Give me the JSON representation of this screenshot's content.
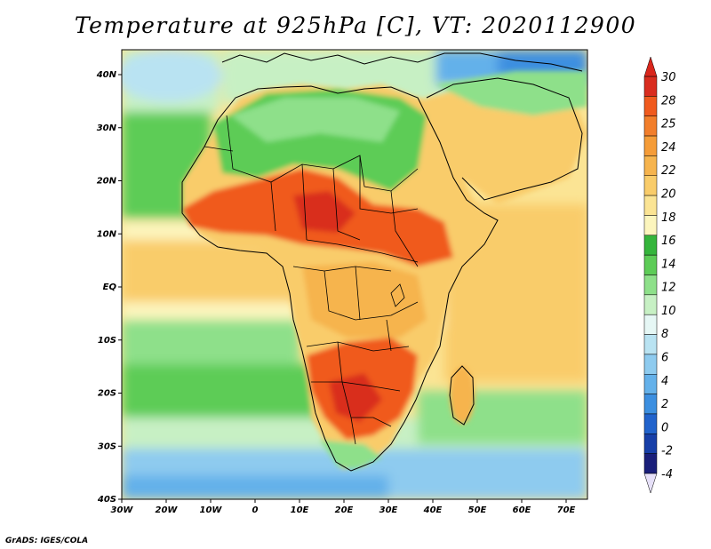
{
  "title": "Temperature at 925hPa [C], VT: 2020112900",
  "credit": "GrADS: IGES/COLA",
  "axes": {
    "x_ticks": [
      "30W",
      "20W",
      "10W",
      "0",
      "10E",
      "20E",
      "30E",
      "40E",
      "50E",
      "60E",
      "70E"
    ],
    "y_ticks": [
      "40N",
      "30N",
      "20N",
      "10N",
      "EQ",
      "10S",
      "20S",
      "30S",
      "40S"
    ]
  },
  "colorbar": {
    "labels": [
      "30",
      "28",
      "25",
      "24",
      "22",
      "20",
      "18",
      "16",
      "14",
      "12",
      "10",
      "8",
      "6",
      "4",
      "2",
      "0",
      "-2",
      "-4"
    ],
    "colors": [
      "#d92d1f",
      "#f05a1e",
      "#f27e2b",
      "#f59c38",
      "#f6b44e",
      "#f9cc6a",
      "#fbe494",
      "#fcf5bd",
      "#35b53c",
      "#5dcc57",
      "#8ee08a",
      "#c7f0c4",
      "#e6f7f5",
      "#b9e3f2",
      "#8ecbef",
      "#64b1ea",
      "#3c8fe0",
      "#2163cc",
      "#173fa8",
      "#1a1f7a"
    ],
    "top_arrow_color": "#d9261c",
    "bottom_arrow_color": "#e6e0f8"
  },
  "field_colors": {
    "ocean_cool": "#8ecbef",
    "ocean_mid": "#c7f0c4",
    "ocean_warm": "#fbe494",
    "land_warm": "#f6b44e",
    "land_hot": "#f05a1e",
    "land_green": "#5dcc57",
    "land_cold": "#3c8fe0"
  }
}
